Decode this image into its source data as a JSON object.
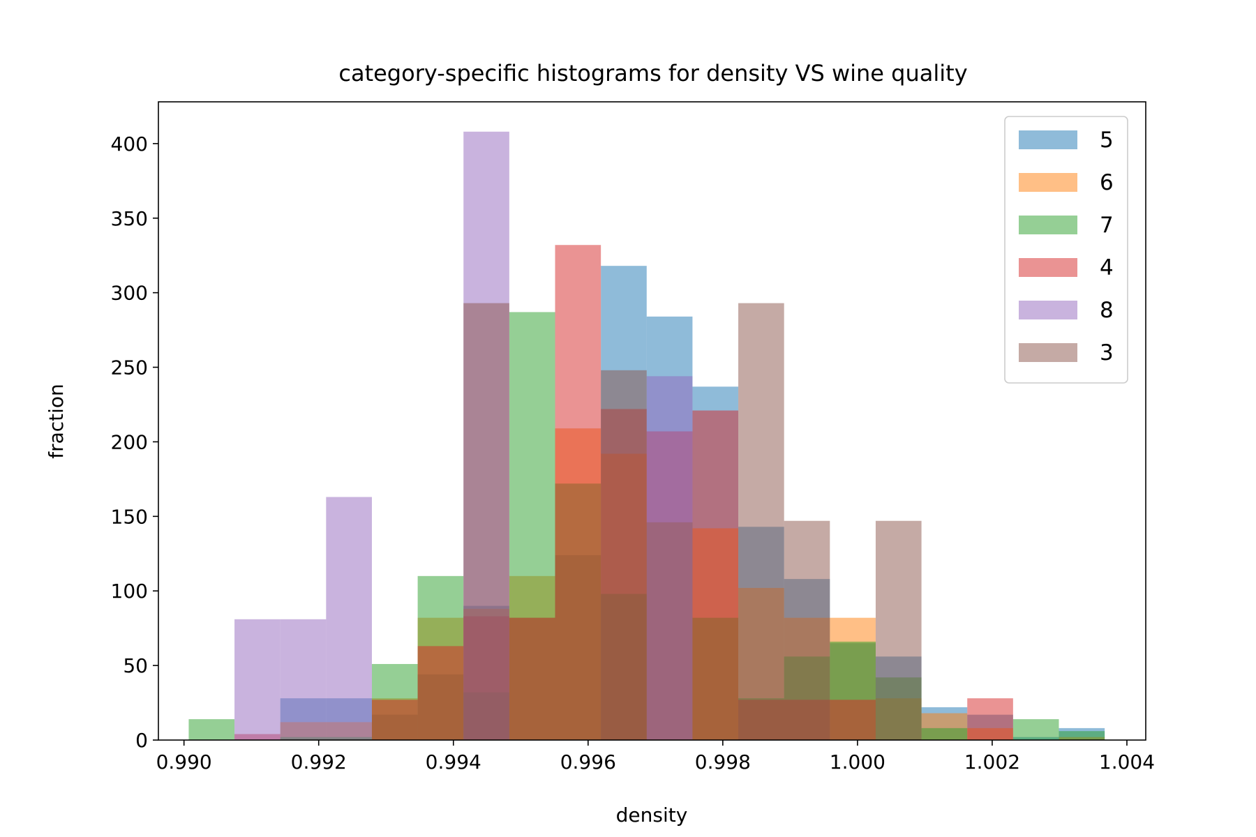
{
  "chart_data": {
    "type": "bar",
    "title": "category-specific histograms for density VS wine quality",
    "xlabel": "density",
    "ylabel": "fraction",
    "xlim": [
      0.98962,
      1.00428
    ],
    "ylim": [
      0,
      428
    ],
    "xticks": [
      0.99,
      0.992,
      0.994,
      0.996,
      0.998,
      1.0,
      1.002,
      1.004
    ],
    "xtick_labels": [
      "0.990",
      "0.992",
      "0.994",
      "0.996",
      "0.998",
      "1.000",
      "1.002",
      "1.004"
    ],
    "yticks": [
      0,
      50,
      100,
      150,
      200,
      250,
      300,
      350,
      400
    ],
    "ytick_labels": [
      "0",
      "50",
      "100",
      "150",
      "200",
      "250",
      "300",
      "350",
      "400"
    ],
    "bin_edges": [
      0.99007,
      0.99075,
      0.99143,
      0.99211,
      0.99279,
      0.99347,
      0.99415,
      0.99483,
      0.99551,
      0.99619,
      0.99687,
      0.99755,
      0.99823,
      0.99891,
      0.99959,
      1.00027,
      1.00095,
      1.00163,
      1.00231,
      1.00299,
      1.00367
    ],
    "grid": false,
    "legend_position": "upper right",
    "bar_opacity": 0.5,
    "series": [
      {
        "name": "5",
        "color": "#1f77b4",
        "values": [
          0,
          0,
          28,
          28,
          17,
          44,
          90,
          82,
          124,
          318,
          284,
          237,
          143,
          108,
          65,
          56,
          22,
          17,
          2,
          8
        ]
      },
      {
        "name": "6",
        "color": "#ff7f0e",
        "values": [
          0,
          0,
          12,
          12,
          28,
          82,
          88,
          110,
          209,
          192,
          146,
          142,
          102,
          82,
          82,
          28,
          18,
          8,
          0,
          2
        ]
      },
      {
        "name": "7",
        "color": "#2ca02c",
        "values": [
          14,
          0,
          2,
          2,
          51,
          110,
          32,
          287,
          172,
          98,
          146,
          82,
          28,
          56,
          66,
          42,
          8,
          0,
          14,
          6
        ]
      },
      {
        "name": "4",
        "color": "#d62728",
        "values": [
          0,
          4,
          0,
          0,
          27,
          63,
          83,
          82,
          332,
          222,
          207,
          221,
          27,
          27,
          27,
          0,
          0,
          28,
          0,
          0
        ]
      },
      {
        "name": "8",
        "color": "#9467bd",
        "values": [
          0,
          81,
          81,
          163,
          0,
          0,
          408,
          0,
          0,
          0,
          244,
          0,
          0,
          0,
          0,
          0,
          0,
          0,
          0,
          0
        ]
      },
      {
        "name": "3",
        "color": "#8c564b",
        "values": [
          0,
          0,
          0,
          0,
          0,
          0,
          293,
          0,
          0,
          248,
          0,
          0,
          293,
          147,
          0,
          147,
          0,
          0,
          0,
          0
        ]
      }
    ]
  }
}
